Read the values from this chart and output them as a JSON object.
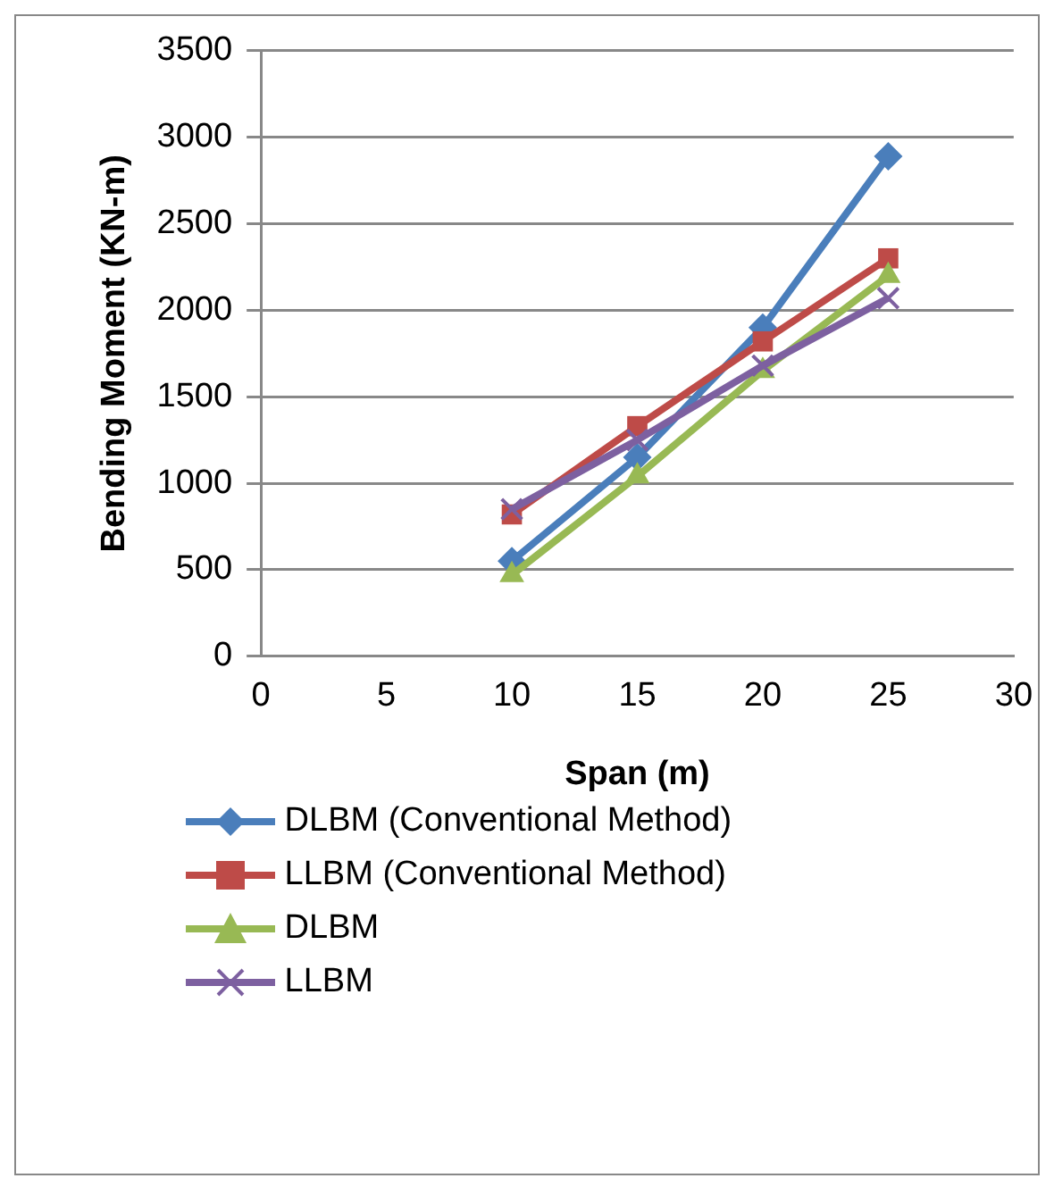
{
  "chart_data": {
    "type": "line",
    "xlabel": "Span (m)",
    "ylabel": "Bending Moment (KN-m)",
    "x": [
      10,
      15,
      20,
      25
    ],
    "xlim": [
      0,
      30
    ],
    "xticks": [
      0,
      5,
      10,
      15,
      20,
      25,
      30
    ],
    "ylim": [
      0,
      3500
    ],
    "yticks": [
      0,
      500,
      1000,
      1500,
      2000,
      2500,
      3000,
      3500
    ],
    "grid": "y",
    "legend": "bottom",
    "series": [
      {
        "name": "DLBM (Conventional Method)",
        "color": "#4a7ebb",
        "marker": "diamond",
        "values": [
          550,
          1150,
          1900,
          2890
        ]
      },
      {
        "name": "LLBM (Conventional Method)",
        "color": "#be4b48",
        "marker": "square",
        "values": [
          820,
          1330,
          1820,
          2300
        ]
      },
      {
        "name": "DLBM",
        "color": "#98b954",
        "marker": "triangle",
        "values": [
          470,
          1040,
          1650,
          2200
        ]
      },
      {
        "name": "LLBM",
        "color": "#7d60a0",
        "marker": "cross",
        "values": [
          850,
          1250,
          1680,
          2070
        ]
      }
    ]
  }
}
